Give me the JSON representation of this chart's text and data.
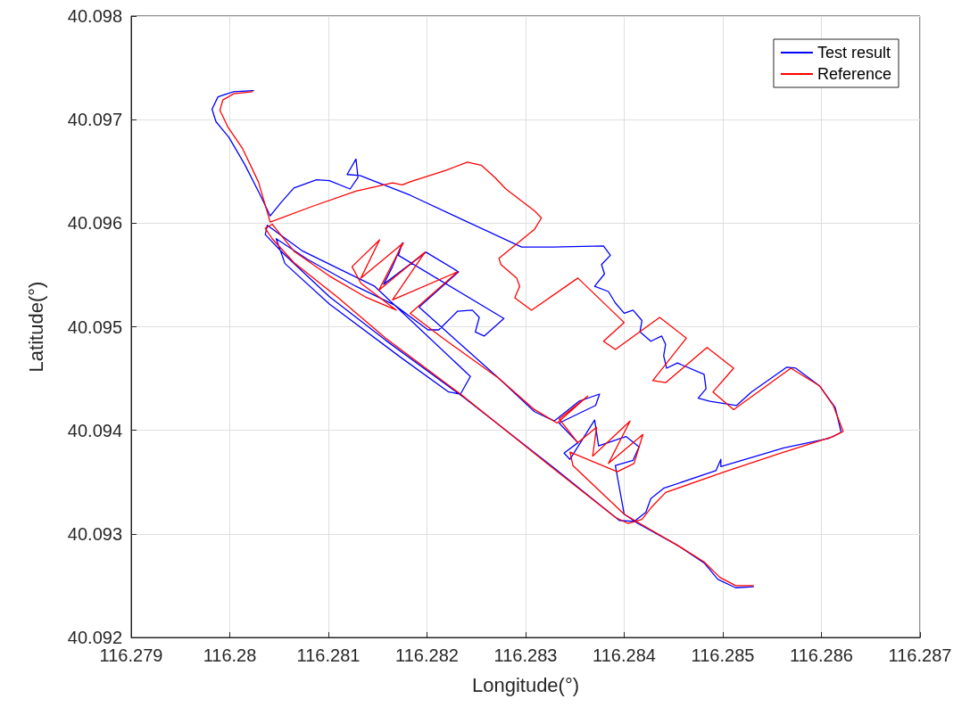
{
  "chart_data": {
    "type": "line",
    "xlabel": "Longitude(°)",
    "ylabel": "Latitude(°)",
    "xlim": [
      116.279,
      116.287
    ],
    "xticks": [
      116.279,
      116.28,
      116.281,
      116.282,
      116.283,
      116.284,
      116.285,
      116.286,
      116.287
    ],
    "ylim": [
      40.092,
      40.098
    ],
    "yticks": [
      40.092,
      40.093,
      40.094,
      40.095,
      40.096,
      40.097,
      40.098
    ],
    "grid": true,
    "legend": "top right",
    "marker": "none",
    "line_style": "solid",
    "series": [
      {
        "name": "Test result",
        "color": "#0000ff",
        "x": [
          116.28024,
          116.28004,
          116.27988,
          116.27982,
          116.27986,
          116.27999,
          116.28015,
          116.28031,
          116.28041,
          116.28052,
          116.28065,
          116.28088,
          116.28101,
          116.28122,
          116.2813,
          116.28128,
          116.28119,
          116.28132,
          116.28183,
          116.28237,
          116.28296,
          116.28327,
          116.28379,
          116.28386,
          116.28377,
          116.2838,
          116.2837,
          116.28384,
          116.28391,
          116.284,
          116.28409,
          116.28418,
          116.28416,
          116.28427,
          116.28438,
          116.28442,
          116.2844,
          116.28443,
          116.28454,
          116.28481,
          116.28483,
          116.28475,
          116.28487,
          116.28514,
          116.28529,
          116.28565,
          116.28574,
          116.28598,
          116.28614,
          116.2862,
          116.28607,
          116.28562,
          116.28498,
          116.28498,
          116.28493,
          116.2844,
          116.28427,
          116.28422,
          116.2841,
          116.28395,
          116.28327,
          116.28237,
          116.28158,
          116.28101,
          116.28054,
          116.28036,
          116.28038,
          116.28074,
          116.28147,
          116.28244,
          116.28234,
          116.28222,
          116.28174,
          116.28101,
          116.28056,
          116.28047,
          116.28079,
          116.28128,
          116.28167,
          116.28201,
          116.28212,
          116.28231,
          116.28246,
          116.28253,
          116.28249,
          116.28258,
          116.28278,
          116.28171,
          116.28175,
          116.28165,
          116.28156,
          116.28199,
          116.28232,
          116.28192,
          116.28273,
          116.28309,
          116.28329,
          116.28354,
          116.28375,
          116.28371,
          116.28334,
          116.28353,
          116.28339,
          116.28345,
          116.2837,
          116.28374,
          116.28402,
          116.28415,
          116.28409,
          116.28391,
          116.284,
          116.28414,
          116.28454,
          116.28481,
          116.28495,
          116.28513,
          116.28531
        ],
        "values": [
          40.09728,
          40.09727,
          40.09722,
          40.0971,
          40.09698,
          40.09683,
          40.09657,
          40.09627,
          40.09607,
          40.0962,
          40.09634,
          40.09642,
          40.09641,
          40.09633,
          40.09644,
          40.09662,
          40.09647,
          40.09646,
          40.09627,
          40.09603,
          40.09577,
          40.09577,
          40.09578,
          40.09569,
          40.0956,
          40.09551,
          40.09539,
          40.09534,
          40.09523,
          40.09513,
          40.09516,
          40.09506,
          40.09495,
          40.09486,
          40.09491,
          40.09483,
          40.09472,
          40.0946,
          40.09465,
          40.09454,
          40.0944,
          40.09431,
          40.09428,
          40.09424,
          40.09437,
          40.09461,
          40.0946,
          40.09443,
          40.09422,
          40.09398,
          40.09392,
          40.09383,
          40.09365,
          40.09372,
          40.09361,
          40.09344,
          40.09334,
          40.09321,
          40.09312,
          40.09313,
          40.09365,
          40.09432,
          40.09487,
          40.09529,
          40.09571,
          40.09589,
          40.09598,
          40.09573,
          40.09539,
          40.09452,
          40.09435,
          40.09437,
          40.0947,
          40.09522,
          40.09561,
          40.09585,
          40.09565,
          40.09539,
          40.09521,
          40.09497,
          40.09497,
          40.09515,
          40.09516,
          40.09509,
          40.09495,
          40.09491,
          40.09508,
          40.09569,
          40.09581,
          40.09558,
          40.09541,
          40.09572,
          40.09553,
          40.09519,
          40.0945,
          40.09418,
          40.09409,
          40.09428,
          40.09435,
          40.09424,
          40.09407,
          40.09388,
          40.09378,
          40.09372,
          40.0941,
          40.09385,
          40.09394,
          40.09384,
          40.09371,
          40.09366,
          40.09319,
          40.0931,
          40.09289,
          40.09272,
          40.09256,
          40.09248,
          40.09249
        ]
      },
      {
        "name": "Reference",
        "color": "#ff0000",
        "x": [
          116.28023,
          116.28004,
          116.27993,
          116.2799,
          116.27998,
          116.28013,
          116.28029,
          116.28041,
          116.28083,
          116.28128,
          116.28165,
          116.28175,
          116.28183,
          116.28219,
          116.28241,
          116.28255,
          116.28269,
          116.2828,
          116.28309,
          116.28316,
          116.28309,
          116.28273,
          116.28275,
          116.28291,
          116.28294,
          116.28289,
          116.28306,
          116.28353,
          116.284,
          116.28379,
          116.28391,
          116.28436,
          116.28463,
          116.28429,
          116.28442,
          116.28484,
          116.28511,
          116.2849,
          116.28511,
          116.28569,
          116.28598,
          116.28612,
          116.28622,
          116.28612,
          116.28562,
          116.28502,
          116.28442,
          116.28427,
          116.28418,
          116.28404,
          116.28391,
          116.28327,
          116.28234,
          116.28158,
          116.2811,
          116.28065,
          116.28043,
          116.28036,
          116.28043,
          116.28065,
          116.28101,
          116.28137,
          116.28169,
          116.28133,
          116.28124,
          116.28152,
          116.28133,
          116.28176,
          116.28151,
          116.28198,
          116.28165,
          116.28231,
          116.28183,
          116.28216,
          116.28273,
          116.28309,
          116.28332,
          116.28363,
          116.28334,
          116.28353,
          116.28372,
          116.28368,
          116.28406,
          116.28384,
          116.28419,
          116.2841,
          116.28393,
          116.28345,
          116.28348,
          116.284,
          116.28414,
          116.28454,
          116.28481,
          116.28497,
          116.28513,
          116.28531
        ],
        "values": [
          40.09727,
          40.09725,
          40.09719,
          40.09709,
          40.09693,
          40.09672,
          40.0964,
          40.09601,
          40.09616,
          40.09631,
          40.09639,
          40.09637,
          40.0964,
          40.09651,
          40.09659,
          40.09656,
          40.09644,
          40.09633,
          40.09612,
          40.09605,
          40.09594,
          40.09566,
          40.0956,
          40.09547,
          40.09539,
          40.09528,
          40.09516,
          40.09547,
          40.09504,
          40.09486,
          40.09478,
          40.09509,
          40.09489,
          40.09448,
          40.09446,
          40.0948,
          40.0946,
          40.09437,
          40.0942,
          40.0946,
          40.09443,
          40.09424,
          40.09399,
          40.09394,
          40.09379,
          40.0936,
          40.0934,
          40.09325,
          40.09314,
          40.0931,
          40.09316,
          40.09364,
          40.09435,
          40.09489,
          40.09528,
          40.09562,
          40.09585,
          40.09595,
          40.09599,
          40.09573,
          40.09549,
          40.09529,
          40.09516,
          40.09542,
          40.09558,
          40.09584,
          40.09547,
          40.09581,
          40.09535,
          40.09572,
          40.09526,
          40.09553,
          40.09513,
          40.09489,
          40.0945,
          40.0942,
          40.09407,
          40.09433,
          40.09411,
          40.09388,
          40.09403,
          40.09375,
          40.09409,
          40.09368,
          40.09396,
          40.09368,
          40.0936,
          40.09379,
          40.09366,
          40.09319,
          40.09311,
          40.09289,
          40.09273,
          40.09258,
          40.0925,
          40.0925
        ]
      }
    ]
  }
}
